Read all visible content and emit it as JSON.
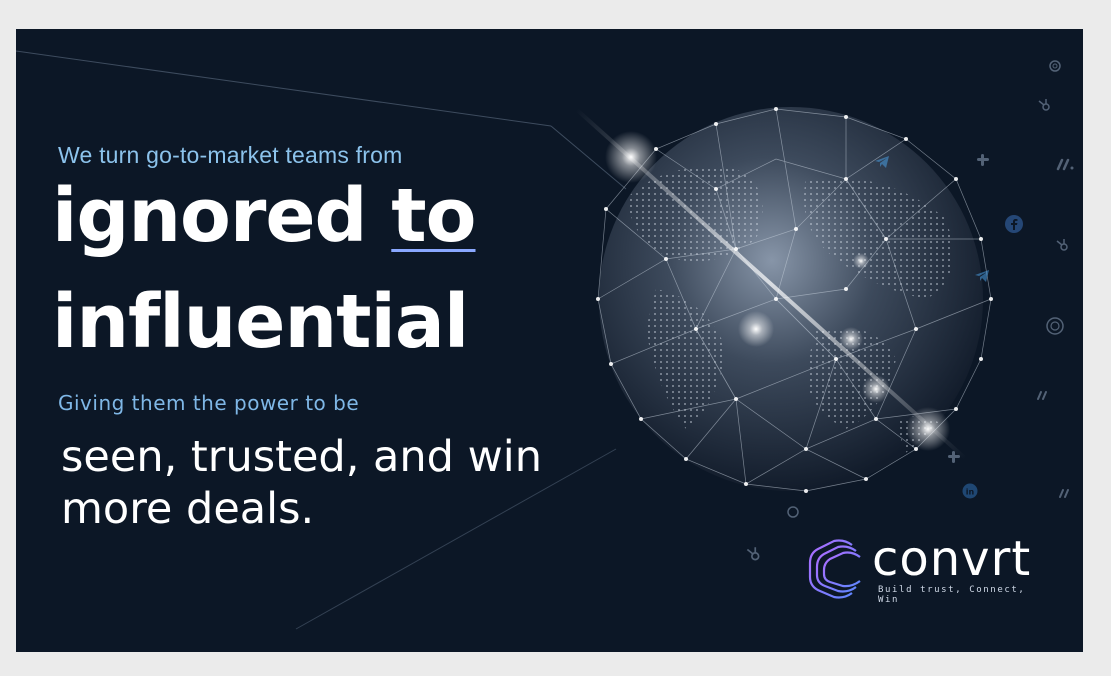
{
  "headline": {
    "intro": "We turn go-to-market teams from",
    "word1": "ignored",
    "word2": "to",
    "word3": "influential"
  },
  "subheadline": {
    "intro": "Giving them the power to be",
    "line1": "seen, trusted, and win",
    "line2": "more deals."
  },
  "brand": {
    "name": "convrt",
    "slogan_line1": "Build trust, Connect,",
    "slogan_line2": "Win"
  },
  "colors": {
    "background": "#0c1726",
    "accent_blue": "#8cc3ec",
    "text": "#ffffff",
    "logo_gradient": [
      "#6a8cff",
      "#b06cff"
    ]
  },
  "icons": [
    "globe-network-icon",
    "hubspot-icon",
    "slack-icon",
    "facebook-icon",
    "telegram-icon",
    "linkedin-icon",
    "monday-icon",
    "openai-icon"
  ]
}
